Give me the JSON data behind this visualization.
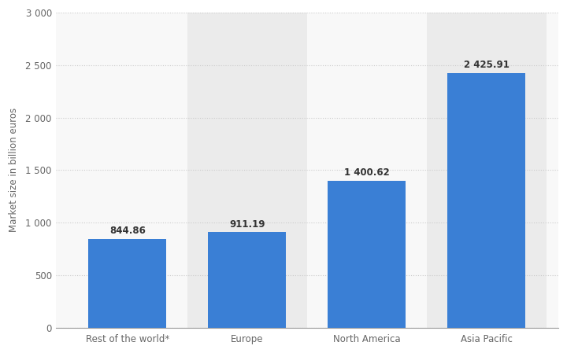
{
  "categories": [
    "Rest of the world*",
    "Europe",
    "North America",
    "Asia Pacific"
  ],
  "values": [
    844.86,
    911.19,
    1400.62,
    2425.91
  ],
  "bar_color": "#3a7fd5",
  "bar_labels": [
    "844.86",
    "911.19",
    "1 400.62",
    "2 425.91"
  ],
  "ylabel": "Market size in billion euros",
  "ylim": [
    0,
    3000
  ],
  "yticks": [
    0,
    500,
    1000,
    1500,
    2000,
    2500,
    3000
  ],
  "ytick_labels": [
    "0",
    "500",
    "1 000",
    "1 500",
    "2 000",
    "2 500",
    "3 000"
  ],
  "background_color": "#ffffff",
  "plot_bg_color": "#f8f8f8",
  "shaded_cols_color": "#ebebeb",
  "grid_color": "#cccccc",
  "bar_width": 0.65,
  "label_fontsize": 8.5,
  "tick_fontsize": 8.5,
  "ylabel_fontsize": 8.5,
  "shaded_cols": [
    1,
    3
  ]
}
